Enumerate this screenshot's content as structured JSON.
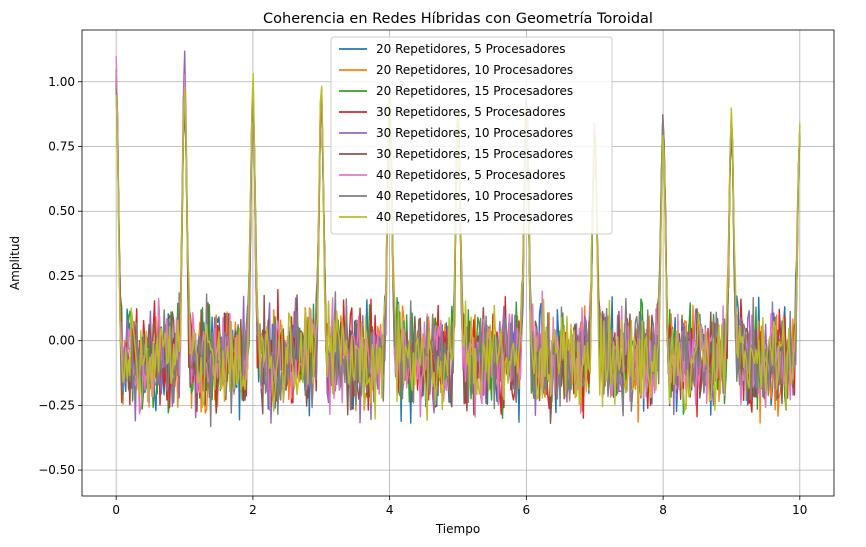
{
  "chart_data": {
    "type": "line",
    "title": "Coherencia en Redes Híbridas con Geometría Toroidal",
    "xlabel": "Tiempo",
    "ylabel": "Amplitud",
    "xlim": [
      -0.5,
      10.5
    ],
    "ylim": [
      -0.6,
      1.2
    ],
    "xticks": [
      0,
      2,
      4,
      6,
      8,
      10
    ],
    "xtick_labels": [
      "0",
      "2",
      "4",
      "6",
      "8",
      "10"
    ],
    "yticks": [
      -0.5,
      -0.25,
      0.0,
      0.25,
      0.5,
      0.75,
      1.0
    ],
    "ytick_labels": [
      "−0.50",
      "−0.25",
      "0.00",
      "0.25",
      "0.50",
      "0.75",
      "1.00"
    ],
    "grid": true,
    "legend_position": "top-center",
    "x_range": [
      0,
      10
    ],
    "num_points": 500,
    "peak_times": [
      0,
      1,
      2,
      3,
      4,
      5,
      6,
      7,
      8,
      9,
      10
    ],
    "series": [
      {
        "name": "20 Repetidores, 5 Procesadores",
        "color": "#1f77b4",
        "peaks": [
          1.05,
          0.93,
          0.96,
          0.95,
          0.94,
          0.92,
          0.95,
          0.81,
          0.82,
          0.83,
          0.8
        ]
      },
      {
        "name": "20 Repetidores, 10 Procesadores",
        "color": "#ff7f0e",
        "peaks": [
          1.0,
          0.95,
          0.98,
          0.93,
          0.96,
          0.9,
          0.93,
          0.85,
          0.78,
          0.86,
          0.82
        ]
      },
      {
        "name": "20 Repetidores, 15 Procesadores",
        "color": "#2ca02c",
        "peaks": [
          0.98,
          0.96,
          0.95,
          0.97,
          0.94,
          0.91,
          0.92,
          0.8,
          0.84,
          0.85,
          0.79
        ]
      },
      {
        "name": "30 Repetidores, 5 Procesadores",
        "color": "#d62728",
        "peaks": [
          1.02,
          0.95,
          0.97,
          0.99,
          0.95,
          0.92,
          0.94,
          0.83,
          0.81,
          0.84,
          0.81
        ]
      },
      {
        "name": "30 Repetidores, 10 Procesadores",
        "color": "#9467bd",
        "peaks": [
          1.03,
          1.12,
          0.99,
          0.96,
          0.93,
          0.91,
          0.96,
          0.82,
          0.86,
          0.87,
          0.83
        ]
      },
      {
        "name": "30 Repetidores, 15 Procesadores",
        "color": "#8c564b",
        "peaks": [
          0.99,
          0.94,
          0.96,
          0.94,
          0.95,
          0.89,
          0.95,
          0.84,
          0.88,
          0.85,
          0.8
        ]
      },
      {
        "name": "40 Repetidores, 5 Procesadores",
        "color": "#e377c2",
        "peaks": [
          1.1,
          1.03,
          0.97,
          0.97,
          0.96,
          0.93,
          0.94,
          0.86,
          0.83,
          0.88,
          0.82
        ]
      },
      {
        "name": "40 Repetidores, 10 Procesadores",
        "color": "#7f7f7f",
        "peaks": [
          0.97,
          0.97,
          0.98,
          0.98,
          0.97,
          0.9,
          0.93,
          0.79,
          0.87,
          0.86,
          0.8
        ]
      },
      {
        "name": "40 Repetidores, 15 Procesadores",
        "color": "#bcbd22",
        "peaks": [
          0.95,
          0.98,
          1.04,
          1.0,
          0.99,
          0.92,
          0.94,
          0.81,
          0.8,
          0.9,
          0.84
        ]
      }
    ],
    "noise_range": [
      -0.5,
      0.3
    ]
  }
}
